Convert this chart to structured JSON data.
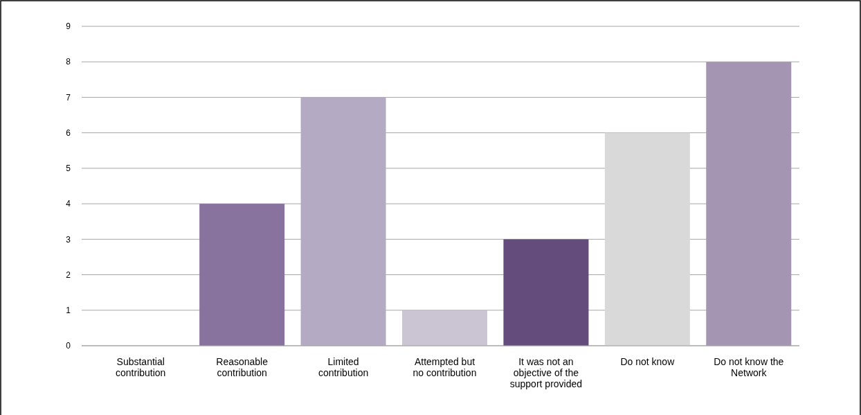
{
  "chart_data": {
    "type": "bar",
    "categories": [
      "Substantial contribution",
      "Reasonable contribution",
      "Limited contribution",
      "Attempted but no contribution",
      "It was not an objective of the support provided",
      "Do not know",
      "Do not know the Network"
    ],
    "values": [
      0,
      4,
      7,
      1,
      3,
      6,
      8
    ],
    "colors": [
      "#5e4a7e",
      "#88739e",
      "#b5aac4",
      "#cbc5d3",
      "#644c7d",
      "#d9d9d9",
      "#a496b2"
    ],
    "ylim": [
      0,
      9
    ],
    "yticks": [
      0,
      1,
      2,
      3,
      4,
      5,
      6,
      7,
      8,
      9
    ],
    "grid": "y"
  }
}
